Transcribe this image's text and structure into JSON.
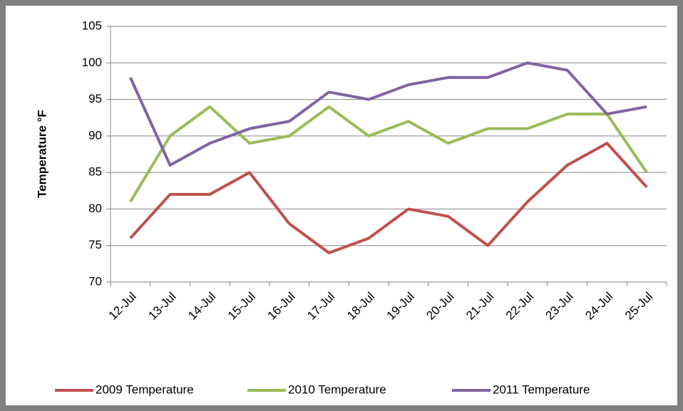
{
  "chart_data": {
    "type": "line",
    "y_label": "Temperature °F",
    "categories": [
      "12-Jul",
      "13-Jul",
      "14-Jul",
      "15-Jul",
      "16-Jul",
      "17-Jul",
      "18-Jul",
      "19-Jul",
      "20-Jul",
      "21-Jul",
      "22-Jul",
      "23-Jul",
      "24-Jul",
      "25-Jul"
    ],
    "series": [
      {
        "name": "2009 Temperature",
        "color": "#c0504d",
        "values": [
          76,
          82,
          82,
          85,
          78,
          74,
          76,
          80,
          79,
          75,
          81,
          86,
          89,
          83
        ]
      },
      {
        "name": "2010 Temperature",
        "color": "#9bbb59",
        "values": [
          81,
          90,
          94,
          89,
          90,
          94,
          90,
          92,
          89,
          91,
          91,
          93,
          93,
          85
        ]
      },
      {
        "name": "2011 Temperature",
        "color": "#8064a2",
        "values": [
          98,
          86,
          89,
          91,
          92,
          96,
          95,
          97,
          98,
          98,
          100,
          99,
          93,
          94
        ]
      }
    ],
    "ylim": [
      70,
      105
    ],
    "yticks": [
      70,
      75,
      80,
      85,
      90,
      95,
      100,
      105
    ],
    "grid": true,
    "legend": "bottom"
  }
}
